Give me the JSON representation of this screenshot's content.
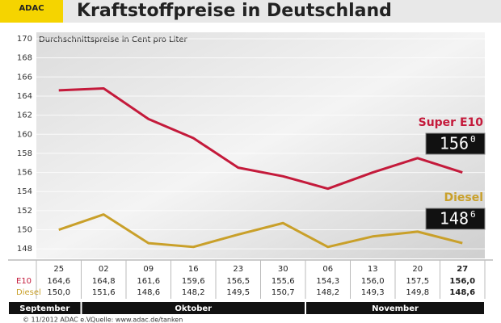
{
  "logo": "ADAC",
  "chart_data": {
    "type": "line",
    "title": "Kraftstoffpreise in Deutschland",
    "subtitle": "Durchschnittspreise in Cent pro Liter",
    "categories": [
      "25",
      "02",
      "09",
      "16",
      "23",
      "30",
      "06",
      "13",
      "20",
      "27"
    ],
    "months": [
      "September",
      "Oktober",
      "November"
    ],
    "ylim": [
      147,
      170
    ],
    "yticks": [
      148,
      150,
      152,
      154,
      156,
      158,
      160,
      162,
      164,
      166,
      168,
      170
    ],
    "grid": true,
    "series": [
      {
        "name": "Super E10",
        "row_label": "E10",
        "color": "#c41a3b",
        "values": [
          164.6,
          164.8,
          161.6,
          159.6,
          156.5,
          155.6,
          154.3,
          156.0,
          157.5,
          156.0
        ],
        "value_labels": [
          "164,6",
          "164,8",
          "161,6",
          "159,6",
          "156,5",
          "155,6",
          "154,3",
          "156,0",
          "157,5",
          "156,0"
        ],
        "display": "156",
        "display_fraction": "0"
      },
      {
        "name": "Diesel",
        "row_label": "Diesel",
        "color": "#c9a02a",
        "values": [
          150.0,
          151.6,
          148.6,
          148.2,
          149.5,
          150.7,
          148.2,
          149.3,
          149.8,
          148.6
        ],
        "value_labels": [
          "150,0",
          "151,6",
          "148,6",
          "148,2",
          "149,5",
          "150,7",
          "148,2",
          "149,3",
          "149,8",
          "148,6"
        ],
        "display": "148",
        "display_fraction": "6"
      }
    ]
  },
  "footer": {
    "copyright": "© 11/2012 ADAC e.V.",
    "source": "Quelle: www.adac.de/tanken"
  }
}
